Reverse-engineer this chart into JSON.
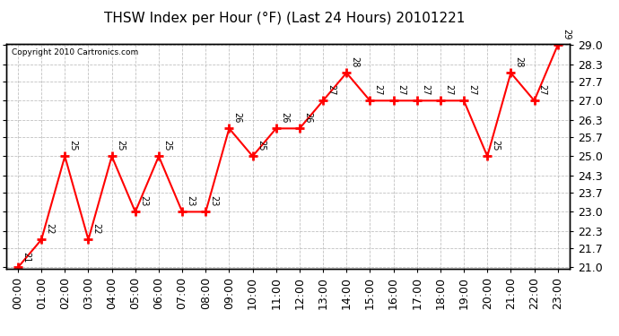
{
  "title": "THSW Index per Hour (°F) (Last 24 Hours) 20101221",
  "copyright": "Copyright 2010 Cartronics.com",
  "x_labels": [
    "00:00",
    "01:00",
    "02:00",
    "03:00",
    "04:00",
    "05:00",
    "06:00",
    "07:00",
    "08:00",
    "09:00",
    "10:00",
    "11:00",
    "12:00",
    "13:00",
    "14:00",
    "15:00",
    "16:00",
    "17:00",
    "18:00",
    "19:00",
    "20:00",
    "21:00",
    "22:00",
    "23:00"
  ],
  "hours": [
    0,
    1,
    2,
    3,
    4,
    5,
    6,
    7,
    8,
    9,
    10,
    11,
    12,
    13,
    14,
    15,
    16,
    17,
    18,
    19,
    20,
    21,
    22,
    23
  ],
  "values": [
    21,
    22,
    25,
    22,
    25,
    23,
    25,
    23,
    23,
    26,
    25,
    26,
    26,
    27,
    28,
    27,
    27,
    27,
    27,
    27,
    25,
    28,
    27,
    29
  ],
  "ylim_min": 21.0,
  "ylim_max": 29.0,
  "yticks": [
    21.0,
    21.7,
    22.3,
    23.0,
    23.7,
    24.3,
    25.0,
    25.7,
    26.3,
    27.0,
    27.7,
    28.3,
    29.0
  ],
  "line_color": "#ff0000",
  "marker_color": "#ff0000",
  "bg_color": "#ffffff",
  "grid_color": "#bbbbbb",
  "title_fontsize": 11,
  "tick_fontsize": 9,
  "annot_fontsize": 7
}
